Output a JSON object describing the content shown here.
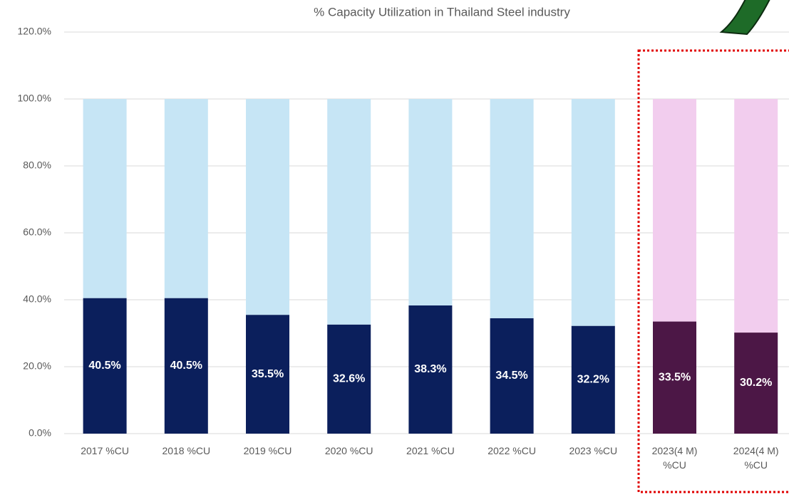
{
  "chart_data": {
    "type": "stacked_bar",
    "title": "% Capacity Utilization in Thailand Steel industry",
    "categories": [
      "2017 %CU",
      "2018 %CU",
      "2019 %CU",
      "2020 %CU",
      "2021 %CU",
      "2022 %CU",
      "2023 %CU",
      "2023(4 M) %CU",
      "2024(4 M) %CU"
    ],
    "series": [
      {
        "colors": [
          "#0b1f5c",
          "#0b1f5c",
          "#0b1f5c",
          "#0b1f5c",
          "#0b1f5c",
          "#0b1f5c",
          "#0b1f5c",
          "#4c1746",
          "#4c1746"
        ],
        "values": [
          40.5,
          40.5,
          35.5,
          32.6,
          38.3,
          34.5,
          32.2,
          33.5,
          30.2
        ],
        "value_labels": [
          "40.5%",
          "40.5%",
          "35.5%",
          "32.6%",
          "38.3%",
          "34.5%",
          "32.2%",
          "33.5%",
          "30.2%"
        ]
      },
      {
        "colors": [
          "#c6e5f5",
          "#c6e5f5",
          "#c6e5f5",
          "#c6e5f5",
          "#c6e5f5",
          "#c6e5f5",
          "#c6e5f5",
          "#f2cdee",
          "#f2cdee"
        ],
        "values": [
          59.5,
          59.5,
          64.5,
          67.4,
          61.7,
          65.5,
          67.8,
          66.5,
          69.8
        ]
      }
    ],
    "ylim": [
      0,
      120
    ],
    "yticks": [
      {
        "value": 0,
        "label": "0.0%"
      },
      {
        "value": 20,
        "label": "20.0%"
      },
      {
        "value": 40,
        "label": "40.0%"
      },
      {
        "value": 60,
        "label": "60.0%"
      },
      {
        "value": 80,
        "label": "80.0%"
      },
      {
        "value": 100,
        "label": "100.0%"
      },
      {
        "value": 120,
        "label": "120.0%"
      }
    ],
    "grid": true
  }
}
